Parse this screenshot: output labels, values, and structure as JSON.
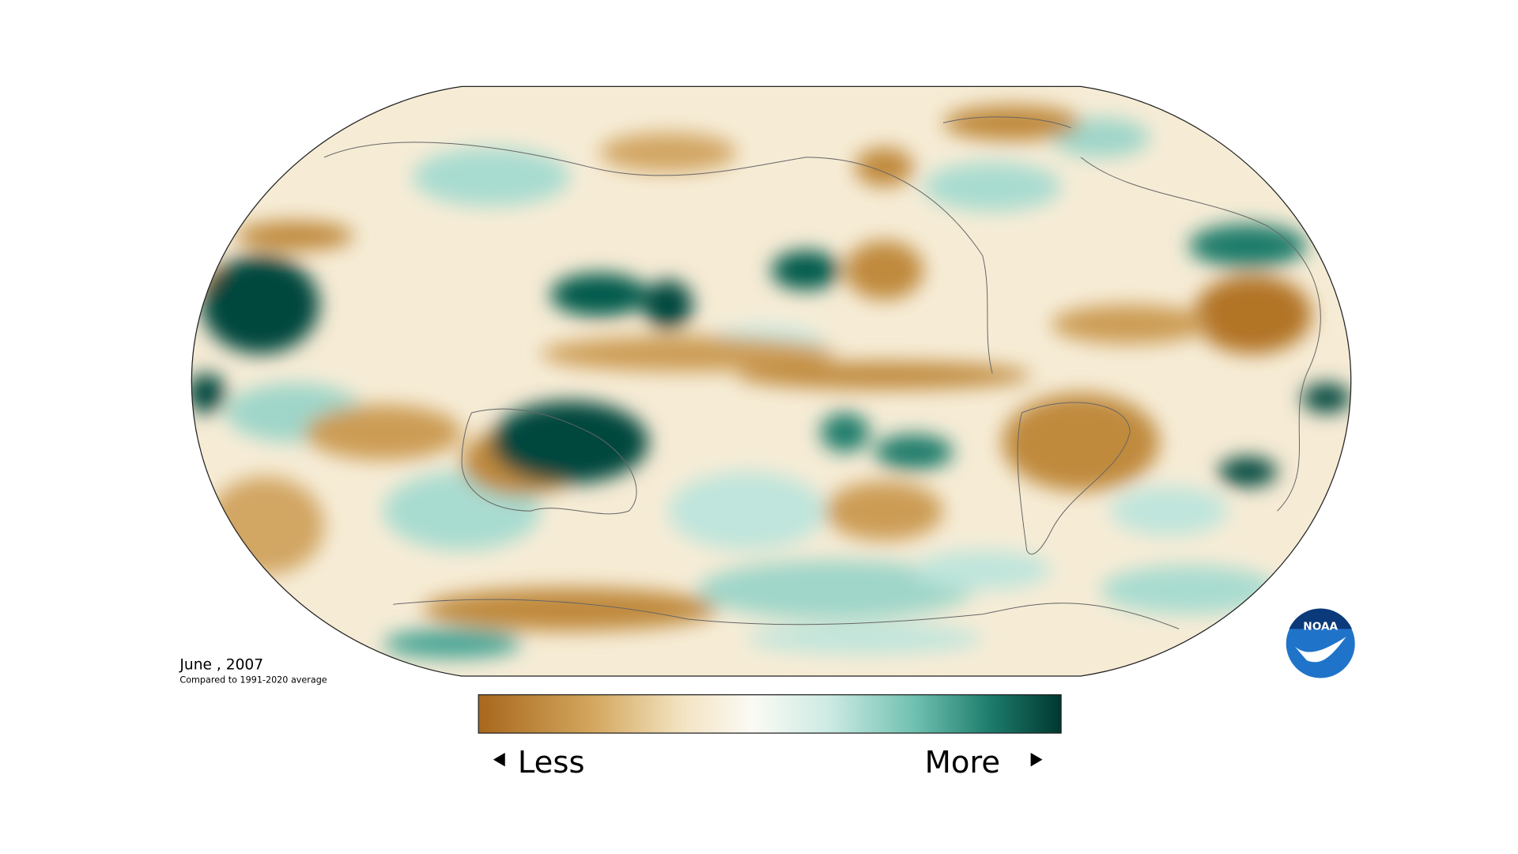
{
  "map": {
    "title": "June , 2007",
    "subtitle": "Compared to 1991-2020 average"
  },
  "legend": {
    "low": "Less",
    "high": "More"
  },
  "logo": {
    "text": "NOAA"
  }
}
